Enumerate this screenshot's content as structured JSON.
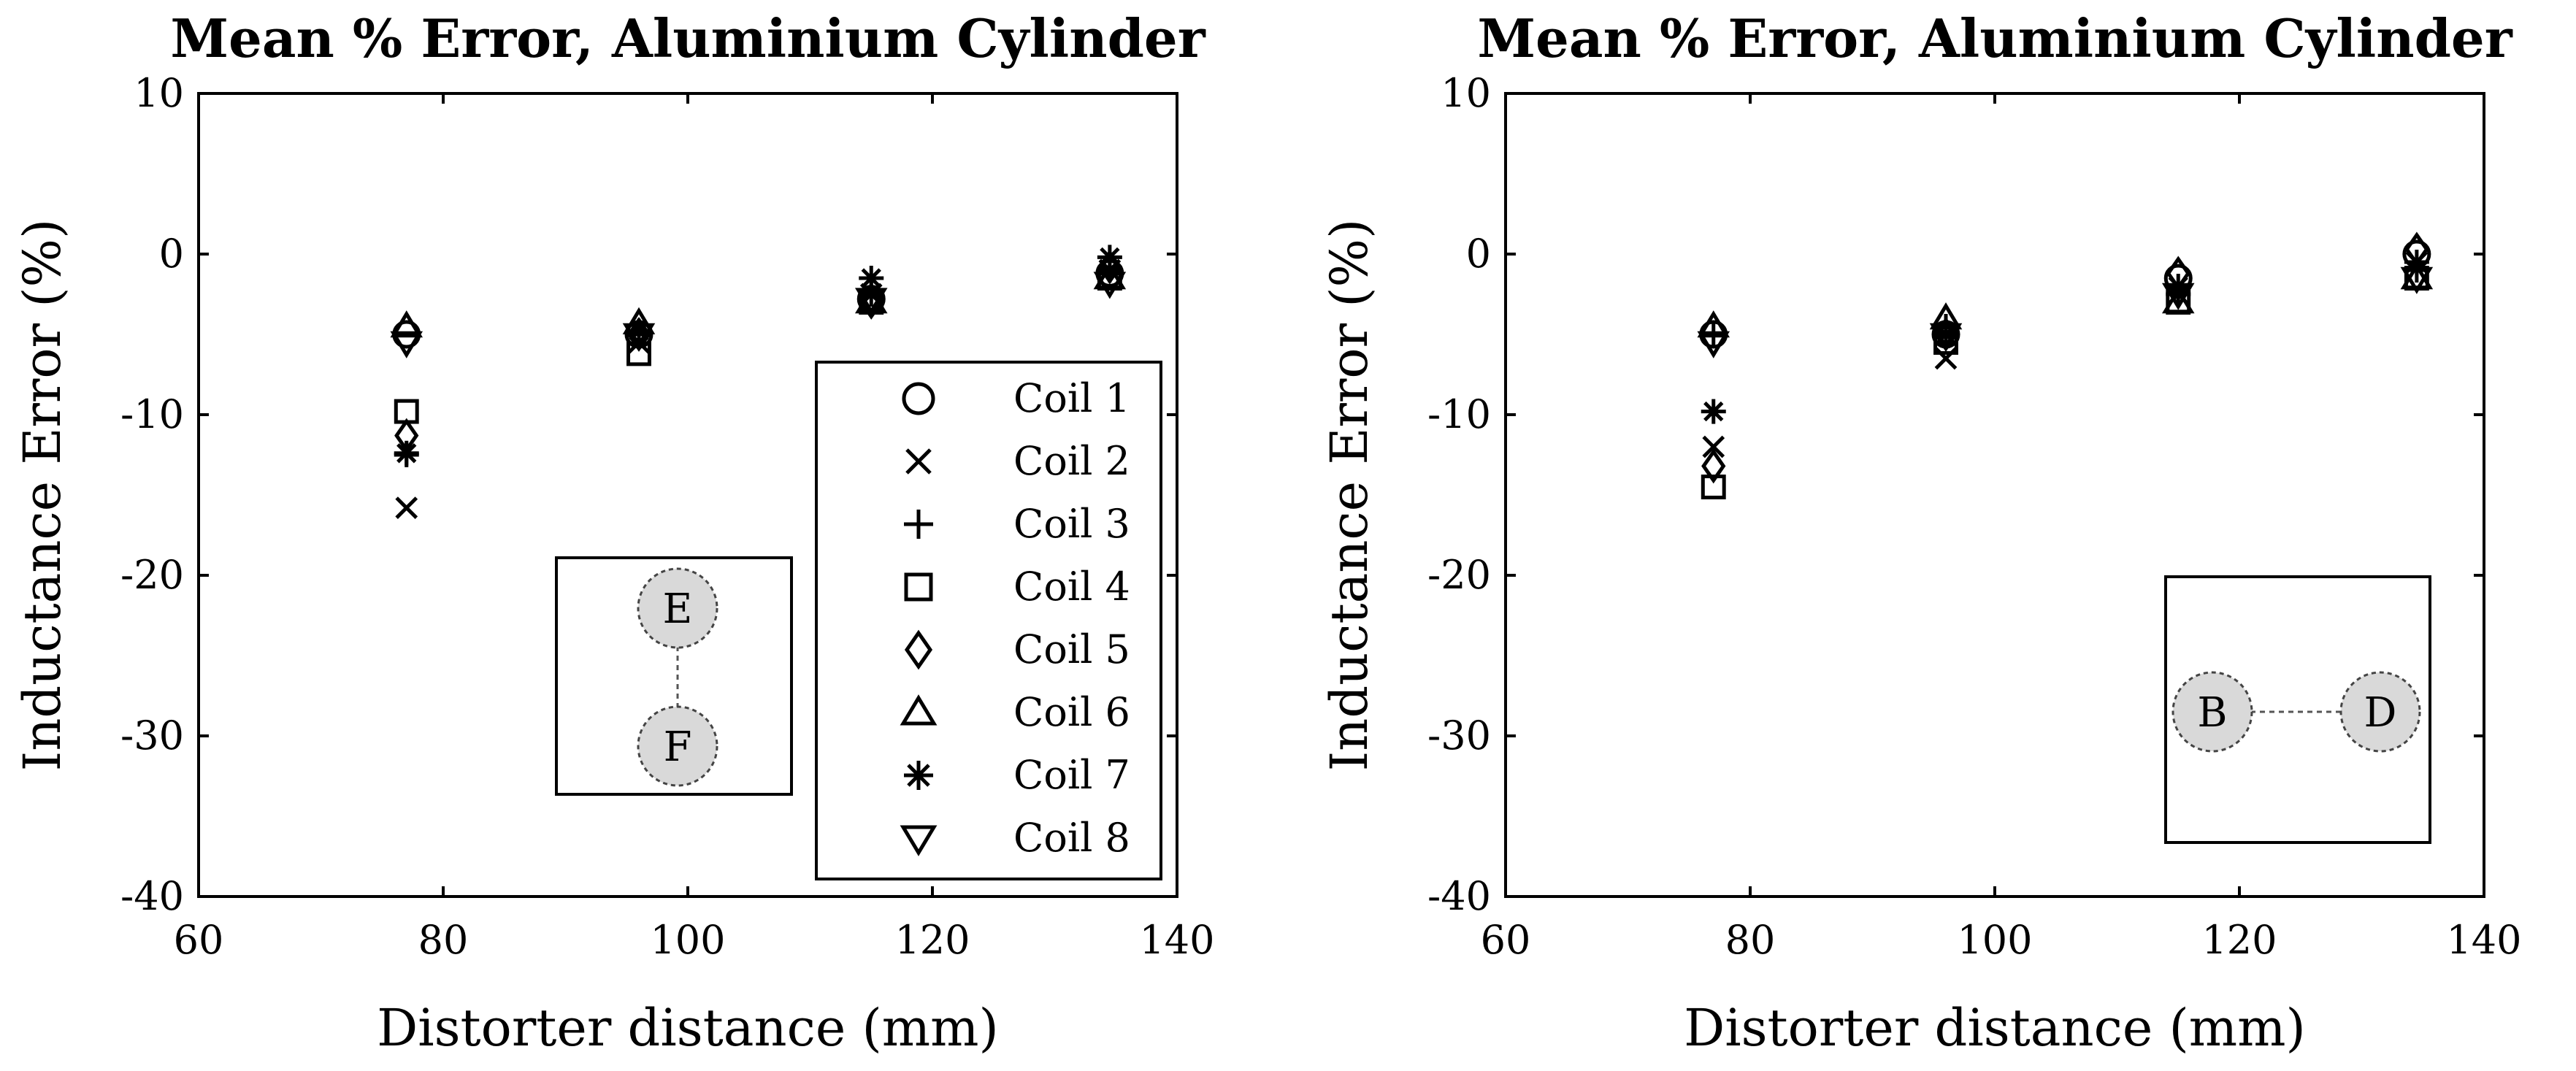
{
  "chart_data": [
    {
      "type": "scatter",
      "title": "Mean % Error, Aluminium Cylinder",
      "xlabel": "Distorter distance (mm)",
      "ylabel": "Inductance Error (%)",
      "xlim": [
        60,
        140
      ],
      "ylim": [
        -40,
        10
      ],
      "xticks": [
        60,
        80,
        100,
        120,
        140
      ],
      "yticks": [
        10,
        0,
        -10,
        -20,
        -30,
        -40
      ],
      "x": [
        77,
        96,
        115,
        134.5
      ],
      "series": [
        {
          "name": "Coil 1",
          "marker": "circle",
          "values": [
            -5.0,
            -5.0,
            -2.8,
            -1.2
          ]
        },
        {
          "name": "Coil 2",
          "marker": "x",
          "values": [
            -15.8,
            -5.5,
            -2.5,
            -1.0
          ]
        },
        {
          "name": "Coil 3",
          "marker": "plus",
          "values": [
            -12.5,
            -5.0,
            -2.5,
            -1.0
          ]
        },
        {
          "name": "Coil 4",
          "marker": "square",
          "values": [
            -9.8,
            -6.2,
            -3.0,
            -1.5
          ]
        },
        {
          "name": "Coil 5",
          "marker": "diamond",
          "values": [
            -11.3,
            -5.0,
            -3.0,
            -0.8
          ]
        },
        {
          "name": "Coil 6",
          "marker": "triangle-up",
          "values": [
            -4.5,
            -4.3,
            -3.0,
            -1.5
          ]
        },
        {
          "name": "Coil 7",
          "marker": "asterisk",
          "values": [
            -12.4,
            -4.8,
            -1.5,
            -0.2
          ]
        },
        {
          "name": "Coil 8",
          "marker": "triangle-down",
          "values": [
            -5.5,
            -5.0,
            -2.8,
            -1.8
          ]
        }
      ],
      "legend": "bottom-right",
      "inset": {
        "nodes": [
          "E",
          "F"
        ],
        "orientation": "vertical"
      }
    },
    {
      "type": "scatter",
      "title": "Mean % Error, Aluminium Cylinder",
      "xlabel": "Distorter distance (mm)",
      "ylabel": "Inductance Error (%)",
      "xlim": [
        60,
        140
      ],
      "ylim": [
        -40,
        10
      ],
      "xticks": [
        60,
        80,
        100,
        120,
        140
      ],
      "yticks": [
        10,
        0,
        -10,
        -20,
        -30,
        -40
      ],
      "x": [
        77,
        96,
        115,
        134.5
      ],
      "series": [
        {
          "name": "Coil 1",
          "marker": "circle",
          "values": [
            -5.0,
            -5.0,
            -1.5,
            0.0
          ]
        },
        {
          "name": "Coil 2",
          "marker": "x",
          "values": [
            -12.0,
            -6.5,
            -2.5,
            -0.5
          ]
        },
        {
          "name": "Coil 3",
          "marker": "plus",
          "values": [
            -5.0,
            -4.5,
            -2.5,
            -1.0
          ]
        },
        {
          "name": "Coil 4",
          "marker": "square",
          "values": [
            -14.5,
            -5.5,
            -3.0,
            -1.5
          ]
        },
        {
          "name": "Coil 5",
          "marker": "diamond",
          "values": [
            -13.2,
            -5.0,
            -1.2,
            0.3
          ]
        },
        {
          "name": "Coil 6",
          "marker": "triangle-up",
          "values": [
            -4.5,
            -4.0,
            -3.0,
            -1.5
          ]
        },
        {
          "name": "Coil 7",
          "marker": "asterisk",
          "values": [
            -9.8,
            -5.0,
            -2.0,
            -0.5
          ]
        },
        {
          "name": "Coil 8",
          "marker": "triangle-down",
          "values": [
            -5.5,
            -5.0,
            -2.5,
            -1.5
          ]
        }
      ],
      "legend": "none",
      "inset": {
        "nodes": [
          "B",
          "D"
        ],
        "orientation": "horizontal"
      }
    }
  ]
}
